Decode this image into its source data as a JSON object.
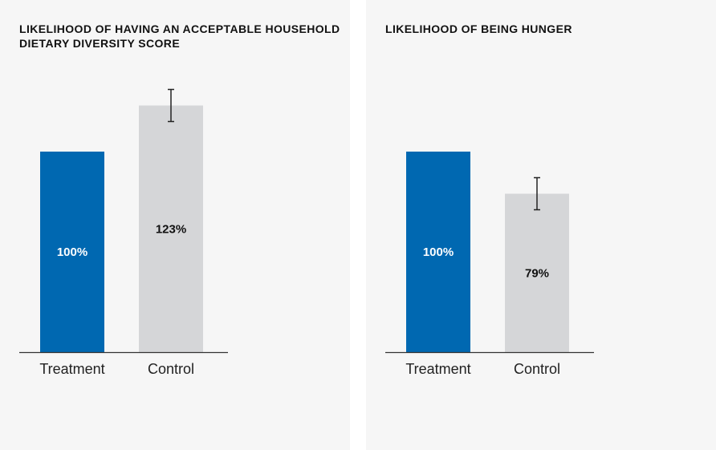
{
  "colors": {
    "treatment": "#0068b1",
    "control": "#d5d6d8",
    "treatment_label": "#ffffff",
    "control_label": "#111111",
    "axis": "#333333"
  },
  "chart_data": [
    {
      "type": "bar",
      "title": "LIKELIHOOD OF HAVING AN ACCEPTABLE HOUSEHOLD DIETARY DIVERSITY SCORE",
      "categories": [
        "Treatment",
        "Control"
      ],
      "values": [
        100,
        123
      ],
      "value_labels": [
        "100%",
        "123%"
      ],
      "error_bars": [
        null,
        [
          115,
          131
        ]
      ],
      "ylim": [
        0,
        135
      ],
      "grid": false
    },
    {
      "type": "bar",
      "title": "LIKELIHOOD OF BEING HUNGER",
      "categories": [
        "Treatment",
        "Control"
      ],
      "values": [
        100,
        79
      ],
      "value_labels": [
        "100%",
        "79%"
      ],
      "error_bars": [
        null,
        [
          71,
          87
        ]
      ],
      "ylim": [
        0,
        135
      ],
      "grid": false
    }
  ]
}
